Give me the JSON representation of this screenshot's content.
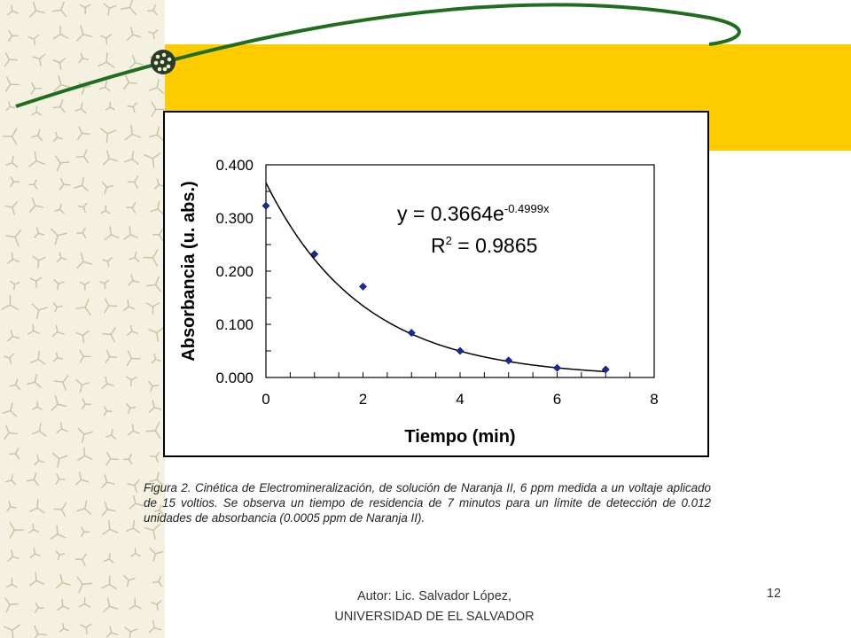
{
  "colors": {
    "accent_bar": "#FFCC00",
    "swoosh": "#1f6e1f",
    "marker": "#1a2a9c",
    "pattern": "#c9c2a0"
  },
  "chart_data": {
    "type": "scatter",
    "xlabel": "Tiempo (min)",
    "ylabel": "Absorbancia (u. abs.)",
    "xlim": [
      0,
      8
    ],
    "ylim": [
      0.0,
      0.4
    ],
    "x_ticks": [
      "0",
      "2",
      "4",
      "6",
      "8"
    ],
    "y_ticks": [
      "0.000",
      "0.100",
      "0.200",
      "0.300",
      "0.400"
    ],
    "grid": false,
    "points": {
      "x": [
        0,
        1,
        2,
        3,
        4,
        5,
        6,
        7
      ],
      "y": [
        0.323,
        0.232,
        0.171,
        0.084,
        0.05,
        0.032,
        0.018,
        0.015
      ]
    },
    "trendline": {
      "type": "exponential",
      "a": 0.3664,
      "b": -0.4999,
      "x_range": [
        0,
        7
      ]
    },
    "equation": {
      "prefix": "y = 0.3664e",
      "exponent": "-0.4999x"
    },
    "r_squared": {
      "prefix": "R",
      "sup": "2",
      "suffix": " = 0.9865"
    }
  },
  "caption": "Figura 2. Cinética de Electromineralización, de solución de Naranja II, 6 ppm medida a un voltaje aplicado de 15 voltios. Se observa un tiempo de residencia de 7 minutos para un límite de detección de 0.012 unidades de absorbancia (0.0005 ppm de Naranja II).",
  "footer": {
    "author_line1": "Autor: Lic. Salvador López,",
    "author_line2": "UNIVERSIDAD DE EL SALVADOR",
    "page_number": "12"
  }
}
